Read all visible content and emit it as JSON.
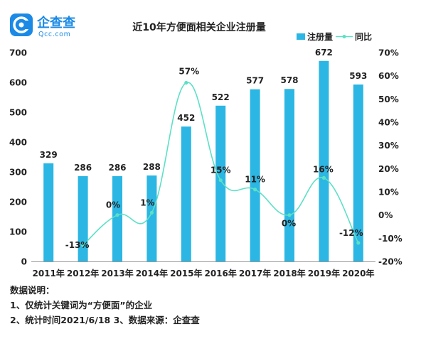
{
  "logo": {
    "name": "企查查",
    "domain": "Qcc.com",
    "brand_color": "#1a8ae6"
  },
  "chart_data": {
    "type": "bar",
    "title": "近10年方便面相关企业注册量",
    "categories": [
      "2011年",
      "2012年",
      "2013年",
      "2014年",
      "2015年",
      "2016年",
      "2017年",
      "2018年",
      "2019年",
      "2020年"
    ],
    "series": [
      {
        "name": "注册量",
        "type": "bar",
        "axis": "left",
        "color": "#2bb6e3",
        "values": [
          329,
          286,
          286,
          288,
          452,
          522,
          577,
          578,
          672,
          593
        ],
        "labels": [
          "329",
          "286",
          "286",
          "288",
          "452",
          "522",
          "577",
          "578",
          "672",
          "593"
        ]
      },
      {
        "name": "同比",
        "type": "line",
        "axis": "right",
        "color": "#5ce0c6",
        "values": [
          null,
          -13,
          0,
          1,
          57,
          15,
          11,
          0,
          16,
          -12
        ],
        "labels": [
          "",
          "-13%",
          "0%",
          "1%",
          "57%",
          "15%",
          "11%",
          "0%",
          "16%",
          "-12%"
        ]
      }
    ],
    "y_left": {
      "min": 0,
      "max": 700,
      "ticks": [
        0,
        100,
        200,
        300,
        400,
        500,
        600,
        700
      ]
    },
    "y_right": {
      "min": -20,
      "max": 70,
      "ticks": [
        -20,
        -10,
        0,
        10,
        20,
        30,
        40,
        50,
        60,
        70
      ],
      "tick_labels": [
        "-20%",
        "-10%",
        "0%",
        "10%",
        "20%",
        "30%",
        "40%",
        "50%",
        "60%",
        "70%"
      ]
    },
    "legend_position": "top-right",
    "grid": false
  },
  "notes": {
    "heading": "数据说明：",
    "line1": "1、仅统计关键词为“方便面”的企业",
    "line2": "2、统计时间2021/6/18   3、数据来源：企查查"
  }
}
